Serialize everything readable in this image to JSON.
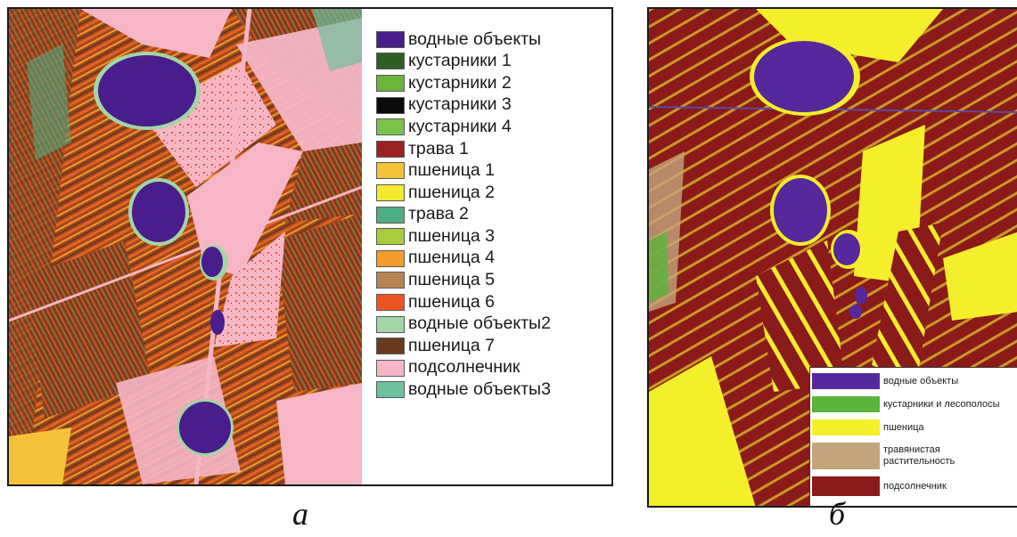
{
  "panel_a": {
    "legend": [
      {
        "label": "водные объекты",
        "color": "#4a1d8c"
      },
      {
        "label": "кустарники 1",
        "color": "#2f5e22"
      },
      {
        "label": "кустарники 2",
        "color": "#6cb43a"
      },
      {
        "label": "кустарники 3",
        "color": "#0a0a0a"
      },
      {
        "label": "кустарники 4",
        "color": "#7cc24a"
      },
      {
        "label": "трава 1",
        "color": "#9a2222"
      },
      {
        "label": "пшеница 1",
        "color": "#f5c23a"
      },
      {
        "label": "пшеница 2",
        "color": "#f2ea2c"
      },
      {
        "label": "трава 2",
        "color": "#4fae83"
      },
      {
        "label": "пшеница 3",
        "color": "#a9cc3c"
      },
      {
        "label": "пшеница 4",
        "color": "#f49d2c"
      },
      {
        "label": "пшеница 5",
        "color": "#b98453"
      },
      {
        "label": "пшеница 6",
        "color": "#ee5421"
      },
      {
        "label": "водные объекты2",
        "color": "#a2d6a6"
      },
      {
        "label": "пшеница 7",
        "color": "#6a3a1f"
      },
      {
        "label": "подсолнечник",
        "color": "#f6b6c6"
      },
      {
        "label": "водные объекты3",
        "color": "#6ec19d"
      }
    ],
    "caption": "а"
  },
  "panel_b": {
    "legend": [
      {
        "label": "водные объекты",
        "color": "#55289c"
      },
      {
        "label": "кустарники и лесополосы",
        "color": "#5ab43c"
      },
      {
        "label": "пшеница",
        "color": "#f3ef2a"
      },
      {
        "label": "травянистая растительность",
        "color": "#c4a47c"
      },
      {
        "label": "подсолнечник",
        "color": "#8b1a1a"
      }
    ],
    "caption": "б"
  }
}
